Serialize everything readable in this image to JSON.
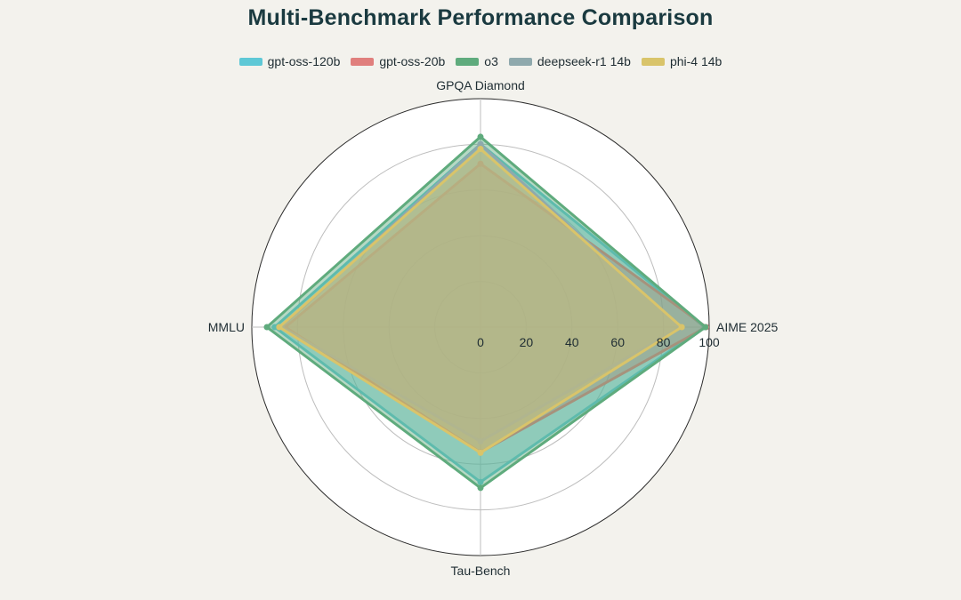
{
  "chart_data": {
    "type": "radar",
    "title": "Multi-Benchmark Performance Comparison",
    "axes": [
      "AIME 2025",
      "GPQA Diamond",
      "MMLU",
      "Tau-Bench"
    ],
    "radial_ticks": [
      "0",
      "20",
      "40",
      "60",
      "80",
      "100"
    ],
    "radial_range": [
      0,
      100
    ],
    "grid": true,
    "legend_position": "top-center",
    "series": [
      {
        "name": "gpt-oss-120b",
        "color": "#5ec8d6",
        "values": [
          97.9,
          80.1,
          90.0,
          67.8
        ]
      },
      {
        "name": "gpt-oss-20b",
        "color": "#e07f7d",
        "values": [
          98.7,
          71.5,
          85.3,
          54.8
        ]
      },
      {
        "name": "o3",
        "color": "#5fab7d",
        "values": [
          98.4,
          83.3,
          93.4,
          70.4
        ]
      },
      {
        "name": "deepseek-r1 14b",
        "color": "#8fa9ad",
        "values": [
          87.5,
          80.0,
          87.0,
          50.0
        ]
      },
      {
        "name": "phi-4 14b",
        "color": "#d9c46a",
        "values": [
          88.0,
          78.0,
          88.0,
          55.0
        ]
      }
    ]
  }
}
